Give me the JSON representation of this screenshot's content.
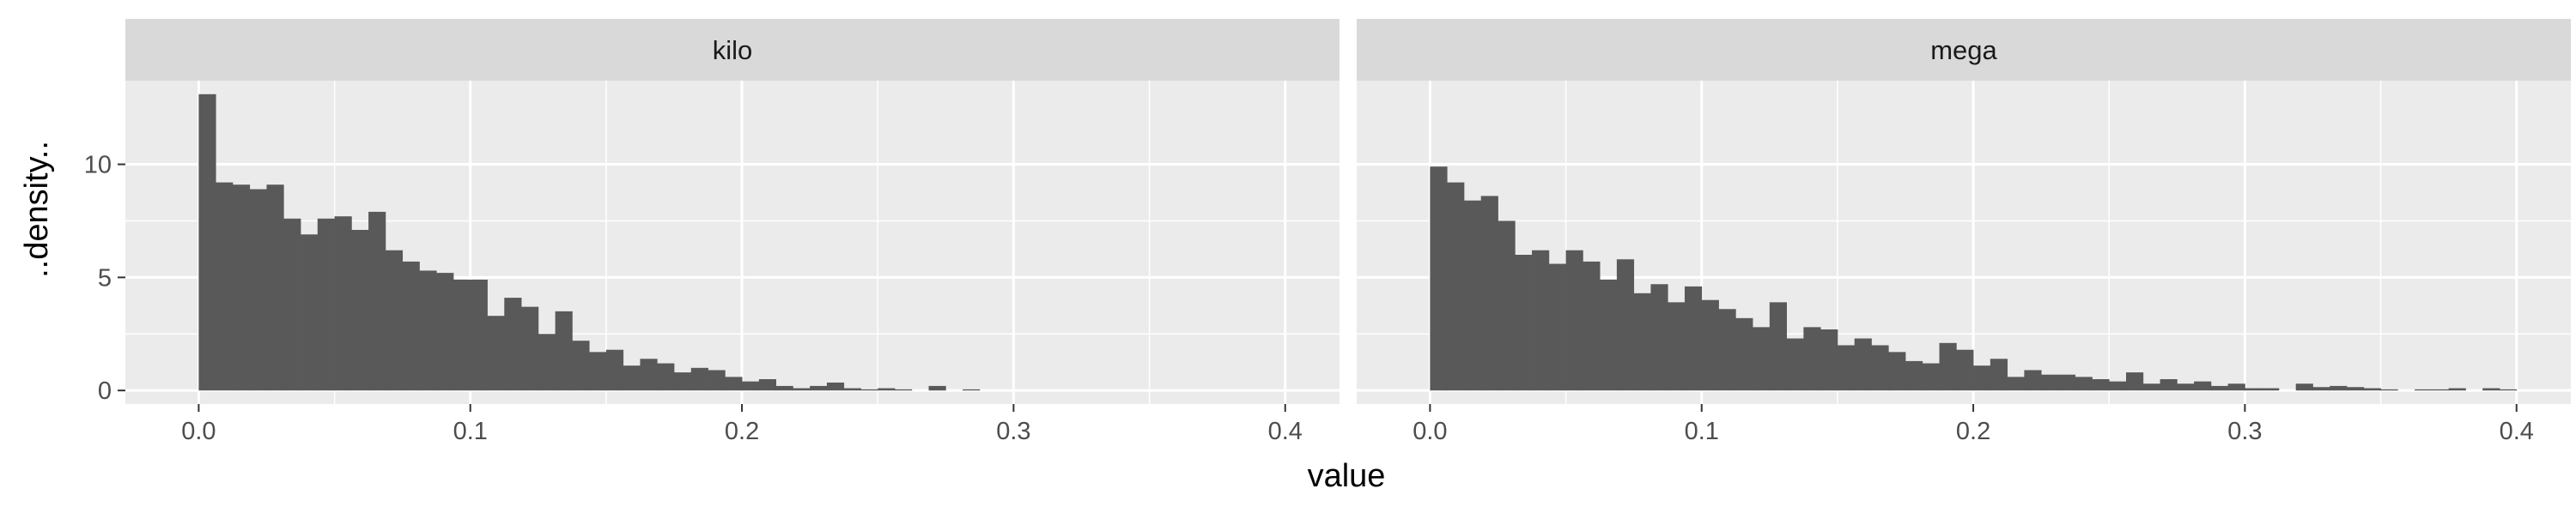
{
  "chart_data": {
    "type": "bar",
    "subtype": "faceted-histogram",
    "xlabel": "value",
    "ylabel": "..density..",
    "xlim": [
      -0.027,
      0.42
    ],
    "ylim": [
      -0.6,
      13.7
    ],
    "x_ticks": [
      0.0,
      0.1,
      0.2,
      0.3,
      0.4
    ],
    "x_tick_labels": [
      "0.0",
      "0.1",
      "0.2",
      "0.3",
      "0.4"
    ],
    "y_ticks": [
      0,
      5,
      10
    ],
    "y_tick_labels": [
      "0",
      "5",
      "10"
    ],
    "bin_start": 0.0,
    "bin_width": 0.00625,
    "grid": true,
    "colors": {
      "bar_fill": "#595959",
      "panel_background": "#ebebeb",
      "strip_background": "#d9d9d9",
      "grid_line": "#ffffff"
    },
    "facets": [
      {
        "name": "kilo",
        "values": [
          13.1,
          9.2,
          9.1,
          8.9,
          9.1,
          7.6,
          6.9,
          7.6,
          7.7,
          7.1,
          7.9,
          6.2,
          5.7,
          5.3,
          5.2,
          4.9,
          4.9,
          3.3,
          4.1,
          3.7,
          2.5,
          3.5,
          2.2,
          1.7,
          1.8,
          1.1,
          1.4,
          1.2,
          0.8,
          1.0,
          0.9,
          0.6,
          0.4,
          0.5,
          0.2,
          0.1,
          0.2,
          0.35,
          0.1,
          0.05,
          0.1,
          0.05,
          0.0,
          0.2,
          0.0,
          0.05,
          0.0,
          0.0,
          0.0,
          0.0,
          0.0,
          0.0,
          0.0,
          0.0,
          0.0,
          0.0,
          0.0,
          0.0,
          0.0,
          0.0,
          0.0,
          0.0,
          0.0,
          0.0
        ]
      },
      {
        "name": "mega",
        "values": [
          9.9,
          9.2,
          8.4,
          8.6,
          7.5,
          6.0,
          6.2,
          5.6,
          6.2,
          5.7,
          4.9,
          5.8,
          4.3,
          4.7,
          3.9,
          4.6,
          4.0,
          3.6,
          3.2,
          2.8,
          3.9,
          2.3,
          2.8,
          2.7,
          2.0,
          2.3,
          2.0,
          1.7,
          1.3,
          1.2,
          2.1,
          1.8,
          1.1,
          1.4,
          0.6,
          0.9,
          0.7,
          0.7,
          0.6,
          0.5,
          0.4,
          0.8,
          0.3,
          0.5,
          0.3,
          0.4,
          0.2,
          0.3,
          0.1,
          0.1,
          0.0,
          0.3,
          0.15,
          0.2,
          0.15,
          0.1,
          0.05,
          0.0,
          0.05,
          0.05,
          0.1,
          0.0,
          0.1,
          0.05
        ]
      }
    ]
  }
}
